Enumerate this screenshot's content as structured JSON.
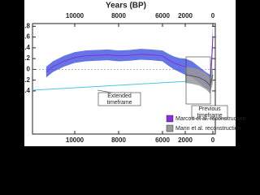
{
  "chart_data": {
    "type": "line",
    "xlabel": "Years (BP)",
    "annotations": [
      [
        "Extended",
        "timeframe"
      ],
      [
        "Previous",
        "timeframe"
      ]
    ],
    "xticks": [
      10000,
      8000,
      6000,
      2000,
      0
    ],
    "ylim": [
      -1.2,
      0.85
    ],
    "yticks": [
      {
        "value": 0.8,
        "label": ".8"
      },
      {
        "value": 0.6,
        "label": ".6"
      },
      {
        "value": 0.4,
        "label": ".4"
      },
      {
        "value": 0.2,
        "label": ".2"
      },
      0,
      {
        "value": -0.2,
        "label": "-.2"
      },
      {
        "value": -0.4,
        "label": "-.4"
      }
    ],
    "series": [
      {
        "name": "Marcott et al. reconstruction",
        "color": "#8a2be2",
        "band_color": "#4a5de0",
        "x": [
          11300,
          11000,
          10500,
          10000,
          9500,
          9000,
          8500,
          8000,
          7500,
          7000,
          6500,
          6000,
          5000,
          4000,
          3000,
          2000,
          1500,
          1000,
          500,
          200,
          100,
          0
        ],
        "values": [
          -0.05,
          0.05,
          0.15,
          0.22,
          0.25,
          0.26,
          0.27,
          0.25,
          0.26,
          0.28,
          0.27,
          0.25,
          0.18,
          0.12,
          0.08,
          0.05,
          0.0,
          -0.1,
          -0.2,
          -0.25,
          0.1,
          0.6
        ],
        "lower": [
          -0.15,
          -0.05,
          0.05,
          0.12,
          0.15,
          0.16,
          0.17,
          0.15,
          0.16,
          0.18,
          0.17,
          0.15,
          0.07,
          0.0,
          -0.05,
          -0.1,
          -0.15,
          -0.25,
          -0.35,
          -0.4,
          -0.05,
          0.4
        ],
        "upper": [
          0.05,
          0.15,
          0.25,
          0.32,
          0.35,
          0.36,
          0.37,
          0.35,
          0.36,
          0.38,
          0.37,
          0.35,
          0.29,
          0.24,
          0.21,
          0.2,
          0.15,
          0.05,
          -0.05,
          -0.1,
          0.25,
          0.8
        ]
      },
      {
        "name": "Mann et al. reconstruction",
        "color": "#555555",
        "band_color": "#9a9a9a",
        "x": [
          2000,
          1500,
          1000,
          500,
          200,
          0
        ],
        "values": [
          -0.1,
          -0.12,
          -0.15,
          -0.22,
          -0.3,
          -0.1
        ],
        "lower": [
          -0.25,
          -0.27,
          -0.3,
          -0.37,
          -0.45,
          -0.25
        ],
        "upper": [
          0.05,
          0.03,
          0.0,
          -0.07,
          -0.15,
          0.05
        ]
      }
    ]
  }
}
